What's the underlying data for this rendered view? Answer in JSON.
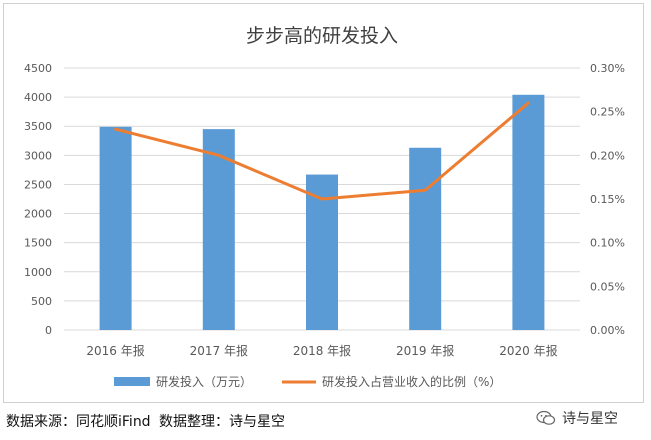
{
  "chart_data": {
    "type": "bar",
    "title": "步步高的研发投入",
    "categories": [
      "2016 年报",
      "2017 年报",
      "2018 年报",
      "2019 年报",
      "2020 年报"
    ],
    "series": [
      {
        "name": "研发投入（万元）",
        "type": "bar",
        "axis": "left",
        "values": [
          3490,
          3450,
          2670,
          3130,
          4040
        ]
      },
      {
        "name": "研发投入占营业收入的比例（%）",
        "type": "line",
        "axis": "right",
        "values": [
          0.23,
          0.2,
          0.15,
          0.16,
          0.26
        ]
      }
    ],
    "y_left": {
      "range": [
        0,
        4500
      ],
      "ticks": [
        "0",
        "500",
        "1000",
        "1500",
        "2000",
        "2500",
        "3000",
        "3500",
        "4000",
        "4500"
      ]
    },
    "y_right": {
      "range": [
        0,
        0.3
      ],
      "ticks": [
        "0.00%",
        "0.05%",
        "0.10%",
        "0.15%",
        "0.20%",
        "0.25%",
        "0.30%"
      ]
    },
    "grid": true,
    "legend_position": "bottom"
  },
  "colors": {
    "bar": "#5b9bd5",
    "line": "#ed7d31",
    "grid": "#d9d9d9",
    "text": "#595959"
  },
  "footer": {
    "source": "数据来源：同花顺iFind",
    "organizer": "数据整理：诗与星空",
    "watermark": "诗与星空"
  }
}
